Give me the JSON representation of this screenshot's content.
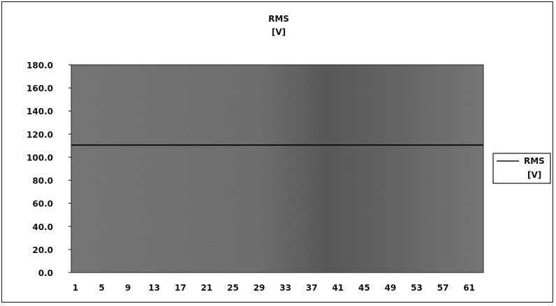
{
  "chart_data": {
    "type": "line",
    "title": [
      "RMS",
      "[V]"
    ],
    "xlabel": "",
    "ylabel": "",
    "categories": [
      "1",
      "5",
      "9",
      "13",
      "17",
      "21",
      "25",
      "29",
      "33",
      "37",
      "41",
      "45",
      "49",
      "53",
      "57",
      "61"
    ],
    "yticks": [
      "0.0",
      "20.0",
      "40.0",
      "60.0",
      "80.0",
      "100.0",
      "120.0",
      "140.0",
      "160.0",
      "180.0"
    ],
    "ylim": [
      0,
      180
    ],
    "series": [
      {
        "name": [
          "RMS",
          "[V]"
        ],
        "values": [
          110.5,
          110.5,
          110.5,
          110.5,
          110.5,
          110.5,
          110.5,
          110.5,
          110.5,
          110.5,
          110.5,
          110.5,
          110.5,
          110.5,
          110.5,
          110.5
        ],
        "color": "#111111"
      }
    ],
    "legend_position": "right",
    "grid": false,
    "plot_background": "#7a7a7a"
  }
}
